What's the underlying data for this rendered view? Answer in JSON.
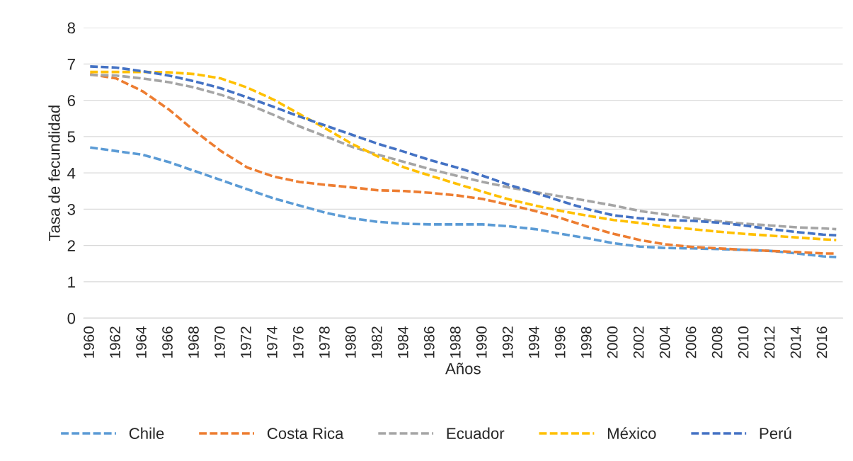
{
  "chart_data": {
    "type": "line",
    "xlabel": "Años",
    "ylabel": "Tasa de fecundidad",
    "x": [
      1960,
      1962,
      1964,
      1966,
      1968,
      1970,
      1972,
      1974,
      1976,
      1978,
      1980,
      1982,
      1984,
      1986,
      1988,
      1990,
      1992,
      1994,
      1996,
      1998,
      2000,
      2002,
      2004,
      2006,
      2008,
      2010,
      2012,
      2014,
      2016,
      2017
    ],
    "series": [
      {
        "name": "Chile",
        "color": "#5b9bd5",
        "values": [
          4.7,
          4.6,
          4.5,
          4.3,
          4.05,
          3.8,
          3.55,
          3.3,
          3.1,
          2.9,
          2.75,
          2.65,
          2.6,
          2.58,
          2.58,
          2.58,
          2.53,
          2.45,
          2.32,
          2.2,
          2.06,
          1.97,
          1.93,
          1.92,
          1.9,
          1.88,
          1.85,
          1.78,
          1.7,
          1.68
        ]
      },
      {
        "name": "Costa Rica",
        "color": "#ed7d31",
        "values": [
          6.72,
          6.6,
          6.25,
          5.75,
          5.15,
          4.6,
          4.15,
          3.9,
          3.75,
          3.67,
          3.6,
          3.52,
          3.5,
          3.45,
          3.38,
          3.28,
          3.12,
          2.95,
          2.75,
          2.52,
          2.32,
          2.15,
          2.03,
          1.96,
          1.92,
          1.88,
          1.85,
          1.82,
          1.78,
          1.78
        ]
      },
      {
        "name": "Ecuador",
        "color": "#a5a5a5",
        "values": [
          6.7,
          6.68,
          6.6,
          6.5,
          6.35,
          6.15,
          5.9,
          5.6,
          5.28,
          5.0,
          4.72,
          4.5,
          4.3,
          4.1,
          3.92,
          3.75,
          3.6,
          3.47,
          3.35,
          3.23,
          3.1,
          2.95,
          2.85,
          2.75,
          2.67,
          2.6,
          2.55,
          2.5,
          2.47,
          2.45
        ]
      },
      {
        "name": "México",
        "color": "#ffc000",
        "values": [
          6.78,
          6.78,
          6.78,
          6.77,
          6.72,
          6.6,
          6.35,
          6.02,
          5.62,
          5.22,
          4.8,
          4.45,
          4.15,
          3.92,
          3.7,
          3.48,
          3.27,
          3.1,
          2.95,
          2.82,
          2.7,
          2.62,
          2.52,
          2.45,
          2.38,
          2.32,
          2.27,
          2.22,
          2.17,
          2.15
        ]
      },
      {
        "name": "Perú",
        "color": "#4472c4",
        "values": [
          6.93,
          6.9,
          6.8,
          6.68,
          6.52,
          6.33,
          6.08,
          5.82,
          5.55,
          5.3,
          5.05,
          4.8,
          4.58,
          4.35,
          4.15,
          3.92,
          3.67,
          3.45,
          3.22,
          3.0,
          2.83,
          2.75,
          2.7,
          2.68,
          2.63,
          2.55,
          2.45,
          2.37,
          2.3,
          2.28
        ]
      }
    ],
    "xlim": [
      1959.5,
      2017.5
    ],
    "xticks": [
      1960,
      1962,
      1964,
      1966,
      1968,
      1970,
      1972,
      1974,
      1976,
      1978,
      1980,
      1982,
      1984,
      1986,
      1988,
      1990,
      1992,
      1994,
      1996,
      1998,
      2000,
      2002,
      2004,
      2006,
      2008,
      2010,
      2012,
      2014,
      2016
    ],
    "ylim": [
      0,
      8
    ],
    "yticks": [
      0,
      1,
      2,
      3,
      4,
      5,
      6,
      7,
      8
    ],
    "grid": "y",
    "legend": "bottom",
    "line_style": "dashed",
    "marker": "none"
  }
}
